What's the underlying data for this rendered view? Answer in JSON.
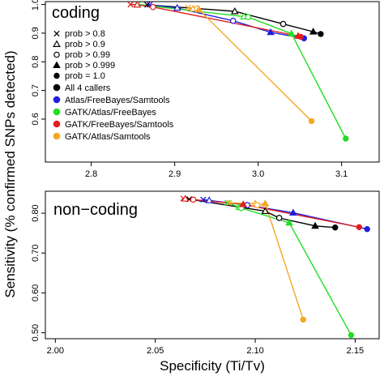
{
  "axes": {
    "xlabel": "Specificity (Ti/Tv)",
    "ylabel": "Sensitivity (% confirmed SNPs detected)"
  },
  "legend": {
    "placement": "left, inside top panel",
    "symbols": [
      {
        "marker": "cross",
        "label": "prob > 0.8"
      },
      {
        "marker": "triangle-open",
        "label": "prob > 0.9"
      },
      {
        "marker": "circle-open",
        "label": "prob > 0.99"
      },
      {
        "marker": "triangle-filled",
        "label": "prob > 0.999"
      },
      {
        "marker": "circle-filled",
        "label": "prob = 1.0"
      }
    ],
    "colors": [
      {
        "label": "All 4 callers",
        "color": "#000000"
      },
      {
        "label": "Atlas/FreeBayes/Samtools",
        "color": "#1f1fdc"
      },
      {
        "label": "GATK/Atlas/FreeBayes",
        "color": "#22dd22"
      },
      {
        "label": "GATK/FreeBayes/Samtools",
        "color": "#e01f1f"
      },
      {
        "label": "GATK/Atlas/Samtools",
        "color": "#f5a623"
      }
    ]
  },
  "chart_data": [
    {
      "type": "line",
      "title": "coding",
      "xlim": [
        2.745,
        3.145
      ],
      "ylim": [
        0.45,
        1.01
      ],
      "xticks": [
        "2.8",
        "2.9",
        "3.0",
        "3.1"
      ],
      "xtick_values": [
        2.8,
        2.9,
        3.0,
        3.1
      ],
      "yticks": [
        "0.6",
        "0.7",
        "0.8",
        "0.9",
        "1.0"
      ],
      "ytick_values": [
        0.6,
        0.7,
        0.8,
        0.9,
        1.0
      ],
      "markers": [
        "cross",
        "triangle-open",
        "circle-open",
        "triangle-filled",
        "circle-filled"
      ],
      "series": [
        {
          "name": "All 4 callers",
          "color": "#000000",
          "x": [
            2.867,
            2.972,
            3.03,
            3.066,
            3.075
          ],
          "y": [
            0.999,
            0.976,
            0.932,
            0.905,
            0.897
          ]
        },
        {
          "name": "Atlas/FreeBayes/Samtools",
          "color": "#1f1fdc",
          "x": [
            2.87,
            2.903,
            2.97,
            3.015,
            3.055
          ],
          "y": [
            0.999,
            0.988,
            0.943,
            0.903,
            0.882
          ]
        },
        {
          "name": "GATK/Atlas/FreeBayes",
          "color": "#22dd22",
          "x": [
            2.856,
            2.983,
            2.988,
            3.04,
            3.105
          ],
          "y": [
            1.0,
            0.958,
            0.956,
            0.898,
            0.532
          ]
        },
        {
          "name": "GATK/FreeBayes/Samtools",
          "color": "#e01f1f",
          "x": [
            2.847,
            2.855,
            2.874,
            3.048,
            3.051
          ],
          "y": [
            1.0,
            0.999,
            0.991,
            0.89,
            0.887
          ]
        },
        {
          "name": "GATK/Atlas/Samtools",
          "color": "#f5a623",
          "x": [
            2.916,
            2.922,
            2.927,
            2.929,
            3.064
          ],
          "y": [
            0.989,
            0.985,
            0.986,
            0.982,
            0.593
          ]
        }
      ]
    },
    {
      "type": "line",
      "title": "non−coding",
      "xlim": [
        1.995,
        2.162
      ],
      "ylim": [
        0.485,
        0.855
      ],
      "xticks": [
        "2.00",
        "2.05",
        "2.10",
        "2.15"
      ],
      "xtick_values": [
        2.0,
        2.05,
        2.1,
        2.15
      ],
      "yticks": [
        "0.50",
        "0.60",
        "0.70",
        "0.80"
      ],
      "ytick_values": [
        0.5,
        0.6,
        0.7,
        0.8
      ],
      "markers": [
        "cross",
        "triangle-open",
        "circle-open",
        "triangle-filled",
        "circle-filled"
      ],
      "series": [
        {
          "name": "All 4 callers",
          "color": "#000000",
          "x": [
            2.067,
            2.105,
            2.112,
            2.13,
            2.14
          ],
          "y": [
            0.835,
            0.805,
            0.788,
            0.768,
            0.764
          ]
        },
        {
          "name": "Atlas/FreeBayes/Samtools",
          "color": "#1f1fdc",
          "x": [
            2.074,
            2.077,
            2.096,
            2.119,
            2.156
          ],
          "y": [
            0.834,
            0.832,
            0.82,
            0.801,
            0.76
          ]
        },
        {
          "name": "GATK/Atlas/FreeBayes",
          "color": "#22dd22",
          "x": [
            2.086,
            2.092,
            2.093,
            2.117,
            2.148
          ],
          "y": [
            0.826,
            0.815,
            0.813,
            0.776,
            0.494
          ]
        },
        {
          "name": "GATK/FreeBayes/Samtools",
          "color": "#e01f1f",
          "x": [
            2.064,
            2.065,
            2.069,
            2.094,
            2.152
          ],
          "y": [
            0.837,
            0.836,
            0.834,
            0.822,
            0.765
          ]
        },
        {
          "name": "GATK/Atlas/Samtools",
          "color": "#f5a623",
          "x": [
            2.087,
            2.1,
            2.101,
            2.105,
            2.124
          ],
          "y": [
            0.826,
            0.824,
            0.82,
            0.824,
            0.533
          ]
        }
      ]
    }
  ]
}
